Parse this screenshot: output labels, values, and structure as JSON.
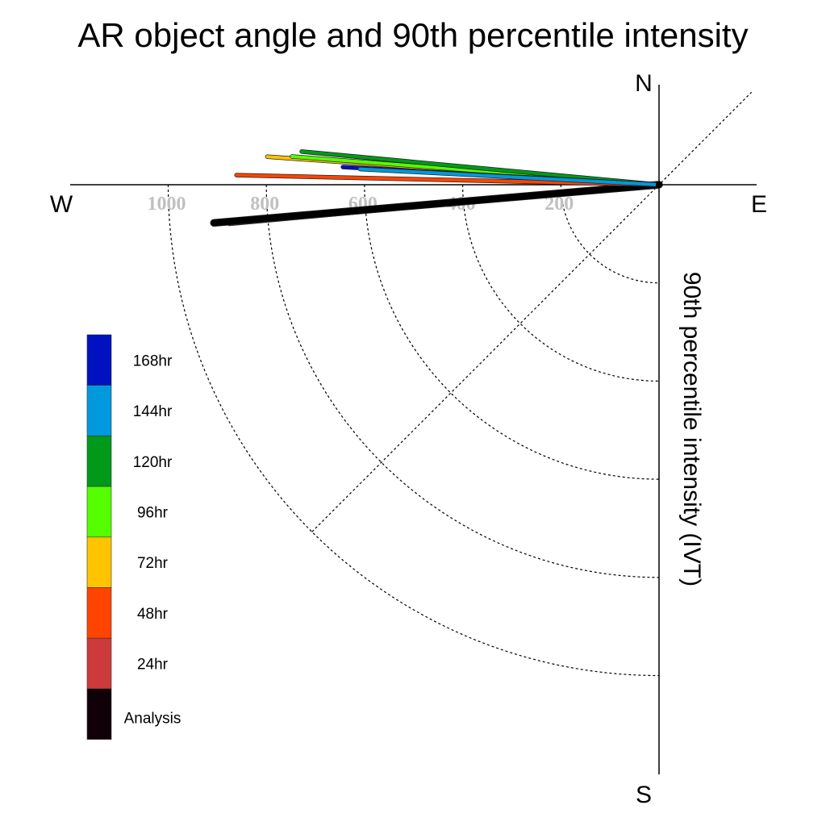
{
  "chart_data": {
    "type": "polar-line",
    "title": "AR object angle and 90th percentile intensity",
    "ylabel": "90th percentile intensity (IVT)",
    "compass": {
      "north": "N",
      "south": "S",
      "east": "E",
      "west": "W"
    },
    "rings": [
      200,
      400,
      600,
      800,
      1000
    ],
    "tick_labels": [
      "1000",
      "800",
      "600",
      "400",
      "200"
    ],
    "radial_max": 1100,
    "legend": [
      {
        "label": "168hr",
        "color": "#0011c0"
      },
      {
        "label": "144hr",
        "color": "#0099dd"
      },
      {
        "label": "120hr",
        "color": "#00991a"
      },
      {
        "label": "96hr",
        "color": "#55ff00"
      },
      {
        "label": "72hr",
        "color": "#ffc400"
      },
      {
        "label": "48hr",
        "color": "#ff4400"
      },
      {
        "label": "24hr",
        "color": "#cc3a3a"
      },
      {
        "label": "Analysis",
        "color": "#100008"
      }
    ],
    "series": [
      {
        "label": "24hr",
        "color": "#cc3a3a",
        "angle_deg": 174.8,
        "intensity": 879
      },
      {
        "label": "Analysis",
        "color": "#000000",
        "angle_deg": 175.1,
        "intensity": 910
      },
      {
        "label": "48hr",
        "color": "#ff4400",
        "angle_deg": 181.3,
        "intensity": 861
      },
      {
        "label": "72hr",
        "color": "#ffc400",
        "angle_deg": 184.1,
        "intensity": 800
      },
      {
        "label": "96hr",
        "color": "#55ff00",
        "angle_deg": 184.4,
        "intensity": 750
      },
      {
        "label": "120hr",
        "color": "#00991a",
        "angle_deg": 185.3,
        "intensity": 731
      },
      {
        "label": "168hr",
        "color": "#0011c0",
        "angle_deg": 183.2,
        "intensity": 645
      },
      {
        "label": "144hr",
        "color": "#0099dd",
        "angle_deg": 183.0,
        "intensity": 610
      }
    ]
  }
}
